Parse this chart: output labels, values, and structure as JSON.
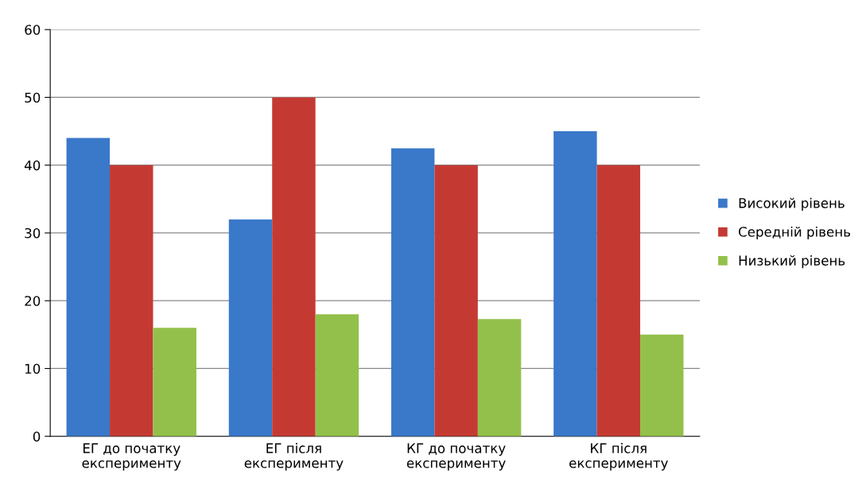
{
  "chart_data": {
    "type": "bar",
    "categories": [
      "ЕГ до початку\nексперименту",
      "ЕГ після\nексперименту",
      "КГ до початку\nексперименту",
      "КГ після\nексперименту"
    ],
    "series": [
      {
        "name": "Високий рівень",
        "color": "#3a78c9",
        "values": [
          44,
          32,
          42.5,
          45
        ]
      },
      {
        "name": "Середній рівень",
        "color": "#c43a33",
        "values": [
          40,
          50,
          40,
          40
        ]
      },
      {
        "name": "Низький рівень",
        "color": "#93c04a",
        "values": [
          16,
          18,
          17.3,
          15
        ]
      }
    ],
    "ylim": [
      0,
      60
    ],
    "yticks": [
      0,
      10,
      20,
      30,
      40,
      50,
      60
    ],
    "grid": "y",
    "legend": "right"
  }
}
